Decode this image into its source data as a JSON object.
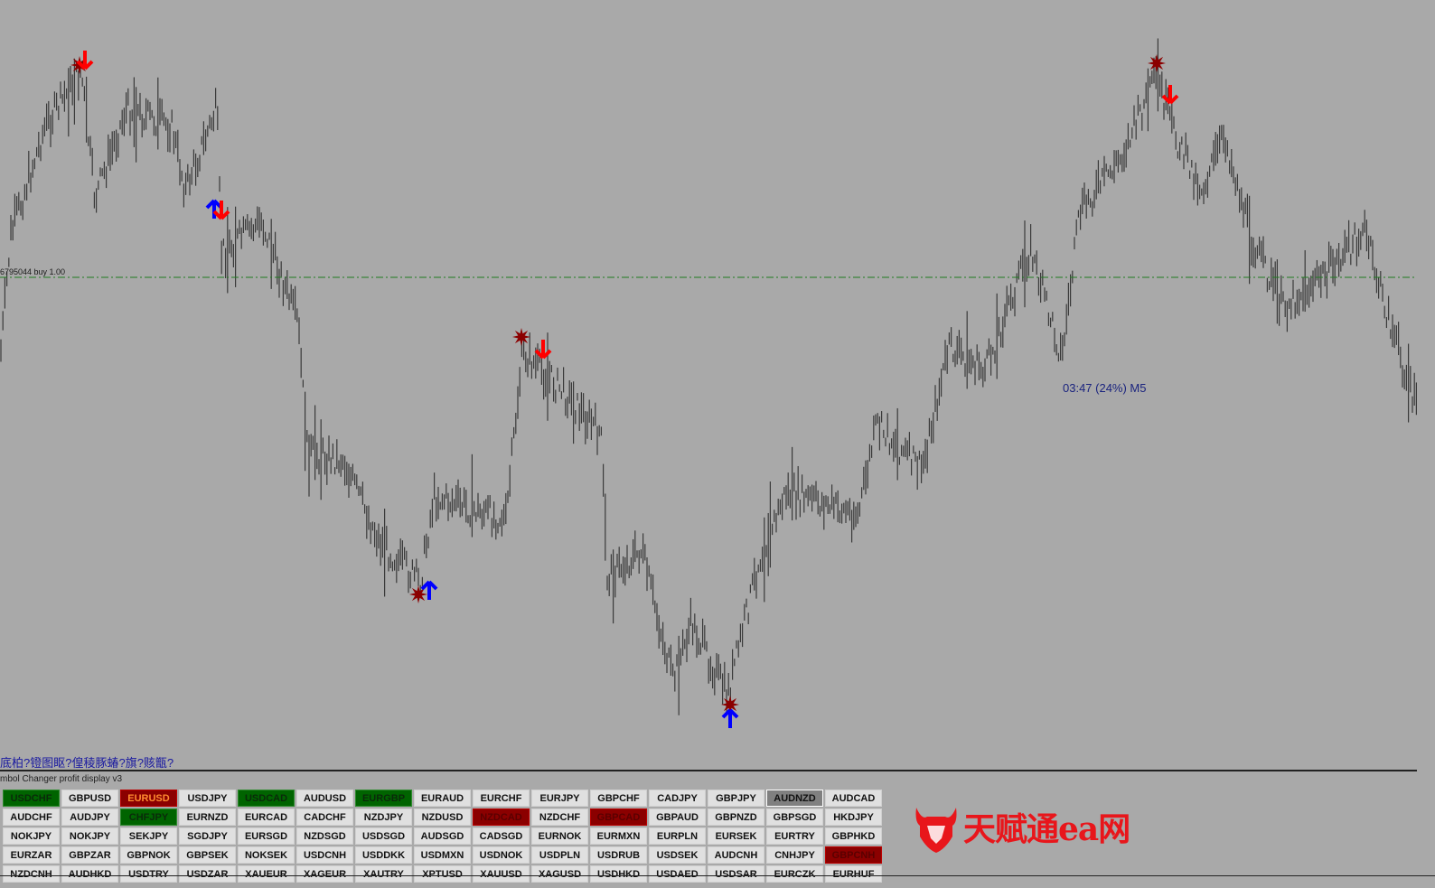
{
  "chart": {
    "order_label": "6795044 buy 1.00",
    "timer_label": "03:47 (24%) M5",
    "colors": {
      "background": "#a9a9a9",
      "bars": "#3a3a3a",
      "order_line": "#1e7a1e",
      "sell_arrow": "#ff0000",
      "buy_arrow": "#0000ff",
      "star": "#8b0000"
    }
  },
  "panel": {
    "garbled_text": "底柏?镫图眍?偟稜豚蝽?旗?赅甑?",
    "title": "mbol Changer profit display v3",
    "buttons": [
      {
        "label": "USDCHF",
        "state": "green"
      },
      {
        "label": "GBPUSD",
        "state": "normal"
      },
      {
        "label": "EURUSD",
        "state": "red"
      },
      {
        "label": "USDJPY",
        "state": "normal"
      },
      {
        "label": "USDCAD",
        "state": "green"
      },
      {
        "label": "AUDUSD",
        "state": "normal"
      },
      {
        "label": "EURGBP",
        "state": "green"
      },
      {
        "label": "EURAUD",
        "state": "normal"
      },
      {
        "label": "EURCHF",
        "state": "normal"
      },
      {
        "label": "EURJPY",
        "state": "normal"
      },
      {
        "label": "GBPCHF",
        "state": "normal"
      },
      {
        "label": "CADJPY",
        "state": "normal"
      },
      {
        "label": "GBPJPY",
        "state": "normal"
      },
      {
        "label": "AUDNZD",
        "state": "gray"
      },
      {
        "label": "AUDCAD",
        "state": "normal"
      },
      {
        "label": "AUDCHF",
        "state": "normal"
      },
      {
        "label": "AUDJPY",
        "state": "normal"
      },
      {
        "label": "CHFJPY",
        "state": "green"
      },
      {
        "label": "EURNZD",
        "state": "normal"
      },
      {
        "label": "EURCAD",
        "state": "normal"
      },
      {
        "label": "CADCHF",
        "state": "normal"
      },
      {
        "label": "NZDJPY",
        "state": "normal"
      },
      {
        "label": "NZDUSD",
        "state": "normal"
      },
      {
        "label": "NZDCAD",
        "state": "darkred"
      },
      {
        "label": "NZDCHF",
        "state": "normal"
      },
      {
        "label": "GBPCAD",
        "state": "darkred"
      },
      {
        "label": "GBPAUD",
        "state": "normal"
      },
      {
        "label": "GBPNZD",
        "state": "normal"
      },
      {
        "label": "GBPSGD",
        "state": "normal"
      },
      {
        "label": "HKDJPY",
        "state": "normal"
      },
      {
        "label": "NOKJPY",
        "state": "normal"
      },
      {
        "label": "NOKJPY",
        "state": "normal"
      },
      {
        "label": "SEKJPY",
        "state": "normal"
      },
      {
        "label": "SGDJPY",
        "state": "normal"
      },
      {
        "label": "EURSGD",
        "state": "normal"
      },
      {
        "label": "NZDSGD",
        "state": "normal"
      },
      {
        "label": "USDSGD",
        "state": "normal"
      },
      {
        "label": "AUDSGD",
        "state": "normal"
      },
      {
        "label": "CADSGD",
        "state": "normal"
      },
      {
        "label": "EURNOK",
        "state": "normal"
      },
      {
        "label": "EURMXN",
        "state": "normal"
      },
      {
        "label": "EURPLN",
        "state": "normal"
      },
      {
        "label": "EURSEK",
        "state": "normal"
      },
      {
        "label": "EURTRY",
        "state": "normal"
      },
      {
        "label": "GBPHKD",
        "state": "normal"
      },
      {
        "label": "EURZAR",
        "state": "normal"
      },
      {
        "label": "GBPZAR",
        "state": "normal"
      },
      {
        "label": "GBPNOK",
        "state": "normal"
      },
      {
        "label": "GBPSEK",
        "state": "normal"
      },
      {
        "label": "NOKSEK",
        "state": "normal"
      },
      {
        "label": "USDCNH",
        "state": "normal"
      },
      {
        "label": "USDDKK",
        "state": "normal"
      },
      {
        "label": "USDMXN",
        "state": "normal"
      },
      {
        "label": "USDNOK",
        "state": "normal"
      },
      {
        "label": "USDPLN",
        "state": "normal"
      },
      {
        "label": "USDRUB",
        "state": "normal"
      },
      {
        "label": "USDSEK",
        "state": "normal"
      },
      {
        "label": "AUDCNH",
        "state": "normal"
      },
      {
        "label": "CNHJPY",
        "state": "normal"
      },
      {
        "label": "GBPCNH",
        "state": "darkred"
      },
      {
        "label": "NZDCNH",
        "state": "normal"
      },
      {
        "label": "AUDHKD",
        "state": "normal"
      },
      {
        "label": "USDTRY",
        "state": "normal"
      },
      {
        "label": "USDZAR",
        "state": "normal"
      },
      {
        "label": "XAUEUR",
        "state": "normal"
      },
      {
        "label": "XAGEUR",
        "state": "normal"
      },
      {
        "label": "XAUTRY",
        "state": "normal"
      },
      {
        "label": "XPTUSD",
        "state": "normal"
      },
      {
        "label": "XAUUSD",
        "state": "normal"
      },
      {
        "label": "XAGUSD",
        "state": "normal"
      },
      {
        "label": "USDHKD",
        "state": "normal"
      },
      {
        "label": "USDAED",
        "state": "normal"
      },
      {
        "label": "USDSAR",
        "state": "normal"
      },
      {
        "label": "EURCZK",
        "state": "normal"
      },
      {
        "label": "EURHUF",
        "state": "normal"
      }
    ]
  },
  "watermark": {
    "text": "天赋通ea网"
  }
}
